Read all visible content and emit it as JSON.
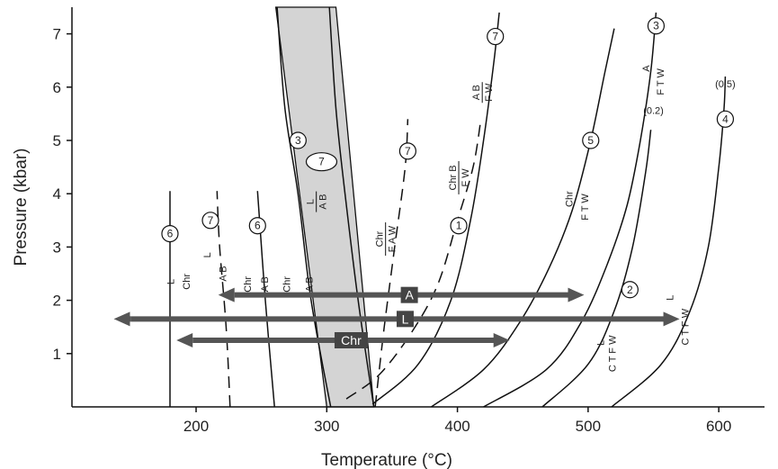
{
  "chart_data": {
    "type": "line",
    "xlabel": "Temperature (°C)",
    "ylabel": "Pressure (kbar)",
    "xlim": [
      105,
      635
    ],
    "ylim": [
      0,
      7.5
    ],
    "x_ticks": [
      200,
      300,
      400,
      500,
      600
    ],
    "y_ticks": [
      1,
      2,
      3,
      4,
      5,
      6,
      7
    ],
    "grid": false,
    "band": {
      "x_bottom": [
        300,
        336
      ],
      "x_top": [
        261,
        307
      ],
      "color": "#d4d4d4"
    },
    "curves": [
      {
        "num": "6",
        "dash": false,
        "points": [
          [
            180,
            0
          ],
          [
            180,
            4.05
          ]
        ],
        "labels": [
          "L",
          "Chr"
        ]
      },
      {
        "num": "7",
        "dash": true,
        "points": [
          [
            226,
            0
          ],
          [
            223,
            1.5
          ],
          [
            218,
            3
          ],
          [
            216,
            4.05
          ]
        ],
        "labels": [
          "L",
          "A B"
        ]
      },
      {
        "num": "6",
        "dash": false,
        "points": [
          [
            260,
            0
          ],
          [
            253,
            2
          ],
          [
            247,
            4.05
          ]
        ],
        "labels": [
          "Chr",
          "A B"
        ]
      },
      {
        "num": "3",
        "dash": false,
        "points": [
          [
            303,
            0
          ],
          [
            288,
            2
          ],
          [
            278,
            4
          ],
          [
            268,
            5.6
          ],
          [
            262,
            7.5
          ]
        ],
        "labels": [
          "Chr",
          "A B"
        ]
      },
      {
        "num": "7",
        "dash": false,
        "points": [
          [
            336,
            0
          ],
          [
            324,
            2
          ],
          [
            314,
            4
          ],
          [
            307,
            5.6
          ],
          [
            302,
            7.5
          ]
        ],
        "labels": [
          "L",
          "A B"
        ]
      },
      {
        "num": "7",
        "dash": true,
        "points": [
          [
            337,
            0
          ],
          [
            344,
            1.5
          ],
          [
            352,
            3
          ],
          [
            360,
            4.5
          ],
          [
            362,
            5.4
          ]
        ],
        "labels": [
          "Chr",
          "F A W"
        ]
      },
      {
        "num": "1",
        "dash": true,
        "points": [
          [
            315,
            0.15
          ],
          [
            340,
            0.6
          ],
          [
            365,
            1.4
          ],
          [
            385,
            2.3
          ],
          [
            400,
            3.5
          ],
          [
            412,
            4.5
          ],
          [
            418,
            5.4
          ]
        ],
        "labels": [
          "Chr B",
          "F W"
        ]
      },
      {
        "num": "7",
        "dash": false,
        "points": [
          [
            335,
            0.05
          ],
          [
            370,
            0.8
          ],
          [
            395,
            2
          ],
          [
            410,
            3.5
          ],
          [
            420,
            5
          ],
          [
            428,
            6.5
          ],
          [
            432,
            7.4
          ]
        ],
        "labels": [
          "A B",
          "F W"
        ]
      },
      {
        "num": "5",
        "dash": false,
        "points": [
          [
            380,
            0
          ],
          [
            420,
            0.7
          ],
          [
            448,
            1.6
          ],
          [
            470,
            2.6
          ],
          [
            488,
            3.7
          ],
          [
            502,
            5
          ],
          [
            513,
            6.3
          ],
          [
            520,
            7.1
          ]
        ],
        "labels": [
          "Chr",
          "F T W"
        ]
      },
      {
        "num": "3",
        "dash": false,
        "points": [
          [
            420,
            0
          ],
          [
            468,
            0.7
          ],
          [
            495,
            1.6
          ],
          [
            515,
            2.7
          ],
          [
            530,
            3.8
          ],
          [
            540,
            5
          ],
          [
            548,
            6.3
          ],
          [
            552,
            7.4
          ]
        ],
        "labels": [
          "A",
          "F T W"
        ]
      },
      {
        "num": "2",
        "dash": false,
        "points": [
          [
            465,
            0
          ],
          [
            500,
            0.8
          ],
          [
            520,
            1.8
          ],
          [
            534,
            3
          ],
          [
            544,
            4.4
          ],
          [
            548,
            5.2
          ]
        ],
        "labels": [
          "L",
          "C T F W"
        ],
        "x_co2": "(0.2)"
      },
      {
        "num": "4",
        "dash": false,
        "points": [
          [
            518,
            0
          ],
          [
            556,
            0.8
          ],
          [
            578,
            1.8
          ],
          [
            592,
            3
          ],
          [
            600,
            4.5
          ],
          [
            604,
            5.6
          ],
          [
            605,
            6.2
          ]
        ],
        "labels": [
          "L",
          "C T F W"
        ],
        "x_co2": "(0.5)"
      }
    ],
    "arrows": [
      {
        "tag": "A",
        "from": 217,
        "to": 497,
        "y": 2.1
      },
      {
        "tag": "L",
        "from": 137,
        "to": 570,
        "y": 1.65,
        "dotted_from": 150
      },
      {
        "tag": "Chr",
        "from": 185,
        "to": 440,
        "y": 1.25
      }
    ]
  }
}
